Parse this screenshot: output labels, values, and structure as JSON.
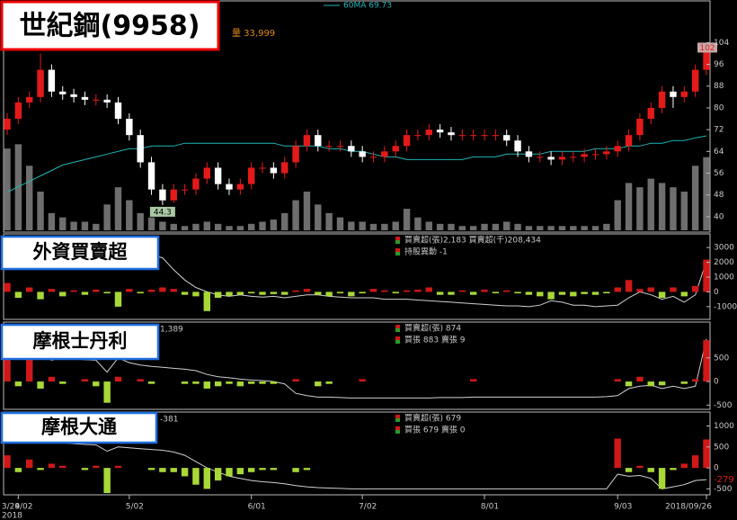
{
  "header": {
    "title": "世紀鋼(9958)",
    "readouts": [
      "60MA 69.73",
      "量 33,999"
    ],
    "year": "2018"
  },
  "chart_data": [
    {
      "type": "candlestick",
      "categories": [
        "3/29",
        "4/02",
        null,
        null,
        null,
        null,
        null,
        null,
        null,
        null,
        null,
        "5/02",
        null,
        null,
        null,
        null,
        null,
        null,
        null,
        null,
        null,
        null,
        "6/01",
        null,
        null,
        null,
        null,
        null,
        null,
        null,
        null,
        null,
        "7/02",
        null,
        null,
        null,
        null,
        null,
        null,
        null,
        null,
        null,
        null,
        "8/01",
        null,
        null,
        null,
        null,
        null,
        null,
        null,
        null,
        null,
        null,
        null,
        "9/03",
        null,
        null,
        null,
        null,
        null,
        null,
        null,
        "2018/09/26"
      ],
      "open": [
        72,
        76,
        82,
        84,
        94,
        86,
        85,
        84,
        83,
        83,
        82,
        76,
        70,
        60,
        50,
        46,
        50,
        50,
        54,
        58,
        52,
        50,
        52,
        58,
        58,
        56,
        60,
        66,
        70,
        66,
        66,
        66,
        64,
        62,
        62,
        64,
        66,
        70,
        70,
        72,
        71,
        70,
        70,
        70,
        70,
        70,
        68,
        64,
        62,
        62,
        61,
        62,
        62,
        63,
        63,
        64,
        66,
        70,
        76,
        80,
        86,
        84,
        86,
        94
      ],
      "high": [
        78,
        84,
        86,
        100,
        96,
        88,
        87,
        86,
        85,
        85,
        84,
        78,
        72,
        62,
        52,
        52,
        52,
        56,
        60,
        60,
        54,
        54,
        60,
        60,
        60,
        62,
        68,
        72,
        72,
        68,
        68,
        68,
        66,
        64,
        66,
        68,
        72,
        72,
        74,
        74,
        73,
        72,
        72,
        72,
        72,
        72,
        70,
        66,
        64,
        64,
        64,
        64,
        65,
        65,
        66,
        68,
        72,
        78,
        82,
        88,
        88,
        88,
        96,
        104
      ],
      "low": [
        70,
        74,
        80,
        82,
        84,
        83,
        82,
        81,
        81,
        80,
        74,
        68,
        58,
        48,
        44.3,
        45,
        48,
        48,
        52,
        50,
        48,
        48,
        50,
        56,
        54,
        54,
        58,
        64,
        64,
        64,
        64,
        62,
        60,
        60,
        60,
        62,
        64,
        68,
        68,
        69,
        68,
        68,
        68,
        68,
        68,
        66,
        62,
        60,
        60,
        59,
        59,
        60,
        60,
        61,
        61,
        62,
        64,
        68,
        74,
        78,
        80,
        82,
        84,
        92
      ],
      "close": [
        76,
        82,
        84,
        94,
        86,
        85,
        84,
        83,
        83,
        82,
        76,
        70,
        60,
        50,
        46,
        50,
        50,
        54,
        58,
        52,
        50,
        52,
        58,
        58,
        56,
        60,
        66,
        70,
        66,
        66,
        66,
        64,
        62,
        62,
        64,
        66,
        70,
        70,
        72,
        71,
        70,
        70,
        70,
        70,
        70,
        68,
        64,
        62,
        62,
        61,
        62,
        62,
        63,
        63,
        64,
        66,
        70,
        76,
        80,
        86,
        84,
        86,
        94,
        102
      ],
      "up_color": "#e41a1a",
      "down_color": "#ffffff",
      "ma": {
        "color": "#1fb5b5",
        "values": [
          49,
          51,
          53,
          55,
          57,
          59,
          60,
          61,
          62,
          63,
          64,
          65,
          65,
          66,
          66,
          66,
          67,
          67,
          67,
          67,
          67,
          67,
          67,
          67,
          67,
          66,
          66,
          66,
          66,
          65,
          65,
          64,
          64,
          63,
          62,
          62,
          61,
          61,
          61,
          61,
          61,
          61,
          62,
          62,
          62,
          63,
          63,
          63,
          63,
          64,
          64,
          64,
          64,
          65,
          65,
          65,
          66,
          66,
          67,
          67,
          68,
          68,
          69,
          69.73
        ]
      },
      "volume": {
        "color": "#6e6e6e",
        "lim": [
          0,
          46000
        ],
        "values": [
          38000,
          40000,
          30000,
          18000,
          8000,
          6000,
          4000,
          4000,
          3000,
          12000,
          20000,
          14000,
          8000,
          6000,
          4000,
          3000,
          2000,
          3000,
          4000,
          3000,
          2000,
          2000,
          3000,
          4000,
          5000,
          8000,
          14000,
          18000,
          12000,
          8000,
          6000,
          4000,
          4000,
          3000,
          3000,
          4000,
          10000,
          6000,
          4000,
          3000,
          3000,
          2000,
          2000,
          3000,
          3000,
          4000,
          3000,
          2000,
          2000,
          2000,
          2000,
          2000,
          2000,
          2000,
          3000,
          14000,
          22000,
          20000,
          24000,
          22000,
          20000,
          18000,
          30000,
          33999
        ]
      },
      "ylim": [
        35,
        119
      ],
      "yticks": [
        40,
        48,
        56,
        64,
        72,
        80,
        88,
        96,
        104
      ]
    },
    {
      "type": "bar",
      "title": "外資買賣超",
      "readouts": [
        "買賣超(張)2,183 買賣超(千)208,434",
        "持股異動 -1"
      ],
      "pos_color": "#d01818",
      "neg_color": "#a8d838",
      "values": [
        600,
        -400,
        300,
        -500,
        200,
        -300,
        100,
        -200,
        150,
        -100,
        -1000,
        200,
        -100,
        150,
        300,
        200,
        -200,
        -300,
        -1300,
        -400,
        -300,
        -200,
        -100,
        -200,
        -150,
        -200,
        100,
        200,
        -200,
        -300,
        -100,
        -300,
        -100,
        200,
        100,
        -100,
        100,
        150,
        300,
        -200,
        -200,
        100,
        -200,
        150,
        -100,
        100,
        -100,
        -200,
        -300,
        -500,
        -200,
        -300,
        -150,
        -200,
        -100,
        300,
        800,
        200,
        300,
        -400,
        300,
        -300,
        400,
        2183
      ],
      "line": {
        "color": "#cfcfcf",
        "values": [
          2900,
          2900,
          2950,
          2900,
          2850,
          2850,
          2800,
          2800,
          2800,
          2700,
          2700,
          2650,
          2600,
          2500,
          2300,
          1500,
          800,
          300,
          0,
          -200,
          -300,
          -200,
          -300,
          -350,
          -300,
          -400,
          -300,
          -200,
          -200,
          -300,
          -350,
          -400,
          -400,
          -400,
          -500,
          -500,
          -500,
          -550,
          -600,
          -650,
          -700,
          -750,
          -800,
          -850,
          -900,
          -950,
          -950,
          -1000,
          -900,
          -600,
          -700,
          -900,
          -900,
          -1000,
          -950,
          -900,
          -400,
          0,
          -200,
          -500,
          -300,
          -700,
          -200,
          2100
        ]
      },
      "ylim": [
        -1800,
        3800
      ],
      "yticks": [
        -1000,
        0,
        1000,
        2000,
        3000
      ]
    },
    {
      "type": "bar",
      "title": "摩根士丹利",
      "side_readout": "1,389",
      "readouts": [
        "買賣超(張) 874",
        "買張 883 賣張 9"
      ],
      "pos_color": "#d01818",
      "neg_color": "#a8d838",
      "values": [
        500,
        -100,
        900,
        -150,
        100,
        -50,
        0,
        50,
        -100,
        -450,
        100,
        0,
        50,
        -50,
        0,
        0,
        -50,
        -50,
        -150,
        -100,
        -50,
        -100,
        -50,
        -50,
        -50,
        0,
        50,
        0,
        -100,
        -50,
        0,
        0,
        50,
        0,
        0,
        0,
        0,
        0,
        0,
        0,
        0,
        0,
        50,
        0,
        0,
        0,
        0,
        0,
        0,
        0,
        0,
        0,
        0,
        0,
        0,
        50,
        -100,
        100,
        -100,
        -80,
        0,
        -50,
        50,
        874
      ],
      "line": {
        "color": "#cfcfcf",
        "values": [
          500,
          600,
          650,
          550,
          450,
          500,
          480,
          460,
          450,
          200,
          500,
          400,
          350,
          320,
          300,
          280,
          260,
          230,
          150,
          100,
          80,
          50,
          30,
          20,
          0,
          -50,
          -250,
          -300,
          -330,
          -330,
          -340,
          -350,
          -350,
          -350,
          -350,
          -350,
          -350,
          -350,
          -350,
          -340,
          -340,
          -340,
          -330,
          -330,
          -330,
          -330,
          -330,
          -330,
          -330,
          -330,
          -330,
          -330,
          -330,
          -330,
          -320,
          -300,
          -150,
          -100,
          -80,
          -150,
          -100,
          -150,
          -100,
          900
        ]
      },
      "ylim": [
        -570,
        1220
      ],
      "yticks": [
        -500,
        0,
        500
      ]
    },
    {
      "type": "bar",
      "title": "摩根大通",
      "side_readout": "-381",
      "readouts": [
        "買賣超(張) 679",
        "買張 679 賣張 0"
      ],
      "pos_color": "#d01818",
      "neg_color": "#a8d838",
      "values": [
        300,
        -100,
        200,
        -50,
        100,
        50,
        0,
        -50,
        50,
        -600,
        50,
        0,
        0,
        -50,
        -100,
        -100,
        -200,
        -400,
        -500,
        -300,
        -200,
        -150,
        -100,
        -50,
        -50,
        0,
        -100,
        -50,
        0,
        0,
        0,
        0,
        0,
        0,
        0,
        0,
        0,
        0,
        0,
        0,
        0,
        0,
        0,
        0,
        0,
        0,
        0,
        0,
        0,
        0,
        0,
        0,
        0,
        0,
        0,
        700,
        -100,
        50,
        -100,
        -500,
        -50,
        100,
        300,
        679
      ],
      "line": {
        "color": "#cfcfcf",
        "values": [
          600,
          650,
          700,
          650,
          600,
          600,
          580,
          560,
          550,
          400,
          500,
          480,
          460,
          440,
          420,
          380,
          300,
          150,
          0,
          -100,
          -200,
          -250,
          -300,
          -330,
          -350,
          -380,
          -420,
          -450,
          -470,
          -480,
          -490,
          -500,
          -500,
          -500,
          -500,
          -500,
          -500,
          -500,
          -500,
          -500,
          -500,
          -500,
          -500,
          -500,
          -500,
          -500,
          -500,
          -500,
          -500,
          -500,
          -500,
          -500,
          -500,
          -500,
          -500,
          -150,
          -200,
          -180,
          -250,
          -500,
          -450,
          -400,
          -300,
          -279
        ],
        "end_color": "#e41a1a"
      },
      "ylim": [
        -620,
        1290
      ],
      "yticks": [
        -500,
        0,
        500,
        1000
      ]
    }
  ]
}
